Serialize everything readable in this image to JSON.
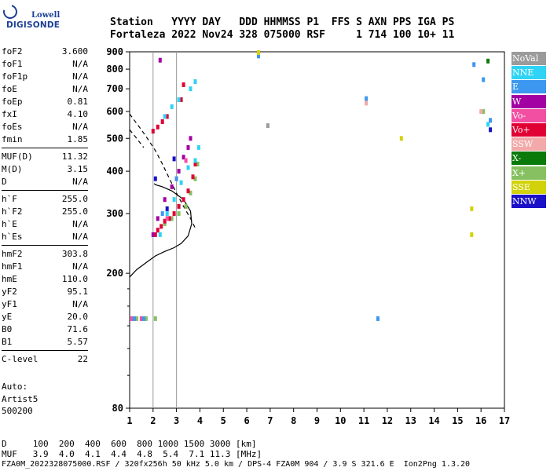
{
  "logo": {
    "top": "Lowell",
    "bottom": "DIGISONDE"
  },
  "header": {
    "line1": "Station   YYYY DAY   DDD HHMMSS P1  FFS S AXN PPS IGA PS",
    "line2": "Fortaleza 2022 Nov24 328 075000 RSF     1 714 100 10+ 11"
  },
  "params": [
    {
      "k": "foF2",
      "v": "3.600"
    },
    {
      "k": "foF1",
      "v": "N/A"
    },
    {
      "k": "foF1p",
      "v": "N/A"
    },
    {
      "k": "foE",
      "v": "N/A"
    },
    {
      "k": "foEp",
      "v": "0.81"
    },
    {
      "k": "fxI",
      "v": "4.10"
    },
    {
      "k": "foEs",
      "v": "N/A"
    },
    {
      "k": "fmin",
      "v": "1.85"
    },
    {
      "sep": true
    },
    {
      "k": "MUF(D)",
      "v": "11.32"
    },
    {
      "k": "M(D)",
      "v": "3.15"
    },
    {
      "k": "D",
      "v": "N/A"
    },
    {
      "sep": true
    },
    {
      "k": "h`F",
      "v": "255.0"
    },
    {
      "k": "h`F2",
      "v": "255.0"
    },
    {
      "k": "h`E",
      "v": "N/A"
    },
    {
      "k": "h`Es",
      "v": "N/A"
    },
    {
      "sep": true
    },
    {
      "k": "hmF2",
      "v": "303.8"
    },
    {
      "k": "hmF1",
      "v": "N/A"
    },
    {
      "k": "hmE",
      "v": "110.0"
    },
    {
      "k": "yF2",
      "v": "95.1"
    },
    {
      "k": "yF1",
      "v": "N/A"
    },
    {
      "k": "yE",
      "v": "20.0"
    },
    {
      "k": "B0",
      "v": "71.6"
    },
    {
      "k": "B1",
      "v": "5.57"
    },
    {
      "sep": true
    },
    {
      "k": "C-level",
      "v": "22"
    }
  ],
  "auto": {
    "line1": "Auto:",
    "line2": "Artist5",
    "line3": "500200"
  },
  "legend": [
    {
      "label": "NoVal",
      "color": "#9b9b9b"
    },
    {
      "label": "NNE",
      "color": "#2fd3f5"
    },
    {
      "label": "E",
      "color": "#3c97f0"
    },
    {
      "label": "W",
      "color": "#a300a3"
    },
    {
      "label": "Vo-",
      "color": "#f24fa3"
    },
    {
      "label": "Vo+",
      "color": "#e00034"
    },
    {
      "label": "SSW",
      "color": "#f2a9a9"
    },
    {
      "label": "X-",
      "color": "#0a7a0a"
    },
    {
      "label": "X+",
      "color": "#86c060"
    },
    {
      "label": "SSE",
      "color": "#d2d20a"
    },
    {
      "label": "NNW",
      "color": "#1a10c8"
    }
  ],
  "bottom": {
    "line1": "D     100  200  400  600  800 1000 1500 3000 [km]",
    "line2": "MUF   3.9  4.0  4.1  4.4  4.8  5.4  7.1 11.3 [MHz]",
    "line3": "FZA0M_2022328075000.RSF / 320fx256h 50 kHz 5.0 km / DPS-4 FZA0M 904 / 3.9 S 321.6 E  Ion2Png 1.3.20"
  },
  "chart_data": {
    "type": "scatter",
    "x": {
      "min": 1,
      "max": 17,
      "ticks": [
        "1",
        "2",
        "3",
        "4",
        "5",
        "6",
        "7",
        "8",
        "9",
        "10",
        "11",
        "12",
        "13",
        "14",
        "15",
        "16",
        "17"
      ]
    },
    "y": {
      "min": 80,
      "max": 900,
      "scale": "log",
      "ticks": [
        "80",
        "200",
        "300",
        "400",
        "500",
        "600",
        "700",
        "800",
        "900"
      ]
    },
    "grid": {
      "verticals": [
        2,
        3
      ]
    },
    "series": [
      {
        "name": "X+",
        "color": "#86c060",
        "points": [
          [
            1.3,
            147
          ],
          [
            1.7,
            147
          ],
          [
            2.1,
            147
          ],
          [
            2.5,
            280
          ],
          [
            2.8,
            290
          ],
          [
            3.1,
            300
          ],
          [
            3.4,
            315
          ],
          [
            3.6,
            345
          ],
          [
            3.8,
            380
          ],
          [
            3.9,
            420
          ],
          [
            16.1,
            600
          ]
        ]
      },
      {
        "name": "Vo+",
        "color": "#e00034",
        "points": [
          [
            2.1,
            260
          ],
          [
            2.2,
            268
          ],
          [
            2.35,
            275
          ],
          [
            2.5,
            285
          ],
          [
            2.7,
            290
          ],
          [
            2.9,
            300
          ],
          [
            3.1,
            315
          ],
          [
            3.3,
            330
          ],
          [
            3.5,
            350
          ],
          [
            3.7,
            385
          ],
          [
            3.8,
            420
          ],
          [
            2.0,
            525
          ],
          [
            2.2,
            540
          ],
          [
            2.4,
            560
          ],
          [
            2.6,
            580
          ],
          [
            3.2,
            650
          ],
          [
            3.3,
            720
          ]
        ]
      },
      {
        "name": "NNE",
        "color": "#2fd3f5",
        "points": [
          [
            2.3,
            260
          ],
          [
            2.6,
            300
          ],
          [
            2.9,
            330
          ],
          [
            3.2,
            370
          ],
          [
            3.5,
            410
          ],
          [
            3.8,
            430
          ],
          [
            3.95,
            470
          ],
          [
            2.5,
            580
          ],
          [
            2.8,
            620
          ],
          [
            3.1,
            650
          ],
          [
            3.6,
            700
          ],
          [
            3.8,
            735
          ],
          [
            16.3,
            550
          ]
        ]
      },
      {
        "name": "W",
        "color": "#a300a3",
        "points": [
          [
            2.0,
            260
          ],
          [
            2.2,
            290
          ],
          [
            2.5,
            330
          ],
          [
            2.8,
            360
          ],
          [
            3.1,
            400
          ],
          [
            3.3,
            440
          ],
          [
            3.5,
            470
          ],
          [
            3.6,
            500
          ],
          [
            2.3,
            850
          ]
        ]
      },
      {
        "name": "Vo-",
        "color": "#f24fa3",
        "points": [
          [
            1.1,
            147
          ],
          [
            1.5,
            147
          ],
          [
            2.6,
            290
          ],
          [
            3.0,
            380
          ],
          [
            3.4,
            430
          ]
        ]
      },
      {
        "name": "E",
        "color": "#3c97f0",
        "points": [
          [
            1.2,
            147
          ],
          [
            1.6,
            147
          ],
          [
            2.4,
            300
          ],
          [
            3.0,
            380
          ],
          [
            6.5,
            875
          ],
          [
            11.1,
            655
          ],
          [
            11.6,
            147
          ],
          [
            15.7,
            825
          ],
          [
            16.1,
            745
          ],
          [
            16.4,
            565
          ]
        ]
      },
      {
        "name": "NNW",
        "color": "#1a10c8",
        "points": [
          [
            2.1,
            380
          ],
          [
            2.6,
            310
          ],
          [
            2.9,
            435
          ],
          [
            16.4,
            530
          ]
        ]
      },
      {
        "name": "X-",
        "color": "#0a7a0a",
        "points": [
          [
            16.3,
            845
          ]
        ]
      },
      {
        "name": "SSW",
        "color": "#f2a9a9",
        "points": [
          [
            11.1,
            635
          ],
          [
            16.0,
            600
          ]
        ]
      },
      {
        "name": "SSE",
        "color": "#d2d20a",
        "points": [
          [
            6.5,
            895
          ],
          [
            12.6,
            500
          ],
          [
            15.6,
            310
          ],
          [
            15.6,
            260
          ]
        ]
      },
      {
        "name": "NoVal",
        "color": "#9b9b9b",
        "points": [
          [
            6.9,
            545
          ]
        ]
      }
    ],
    "profile_solid": [
      [
        1.0,
        195
      ],
      [
        1.3,
        205
      ],
      [
        1.7,
        215
      ],
      [
        2.1,
        225
      ],
      [
        2.5,
        232
      ],
      [
        2.9,
        238
      ],
      [
        3.2,
        245
      ],
      [
        3.5,
        258
      ],
      [
        3.65,
        280
      ],
      [
        3.6,
        305
      ],
      [
        3.3,
        330
      ],
      [
        2.8,
        350
      ],
      [
        2.4,
        360
      ],
      [
        2.1,
        365
      ],
      [
        2.05,
        368
      ]
    ],
    "profile_dashed": [
      [
        1.0,
        590
      ],
      [
        1.2,
        565
      ],
      [
        1.5,
        530
      ],
      [
        1.8,
        495
      ],
      [
        2.1,
        460
      ],
      [
        2.4,
        420
      ],
      [
        2.7,
        380
      ],
      [
        3.0,
        345
      ],
      [
        3.3,
        315
      ],
      [
        3.6,
        290
      ],
      [
        3.8,
        272
      ]
    ],
    "profile_dashed_short": [
      [
        1.0,
        530
      ],
      [
        1.3,
        500
      ],
      [
        1.6,
        470
      ]
    ]
  }
}
